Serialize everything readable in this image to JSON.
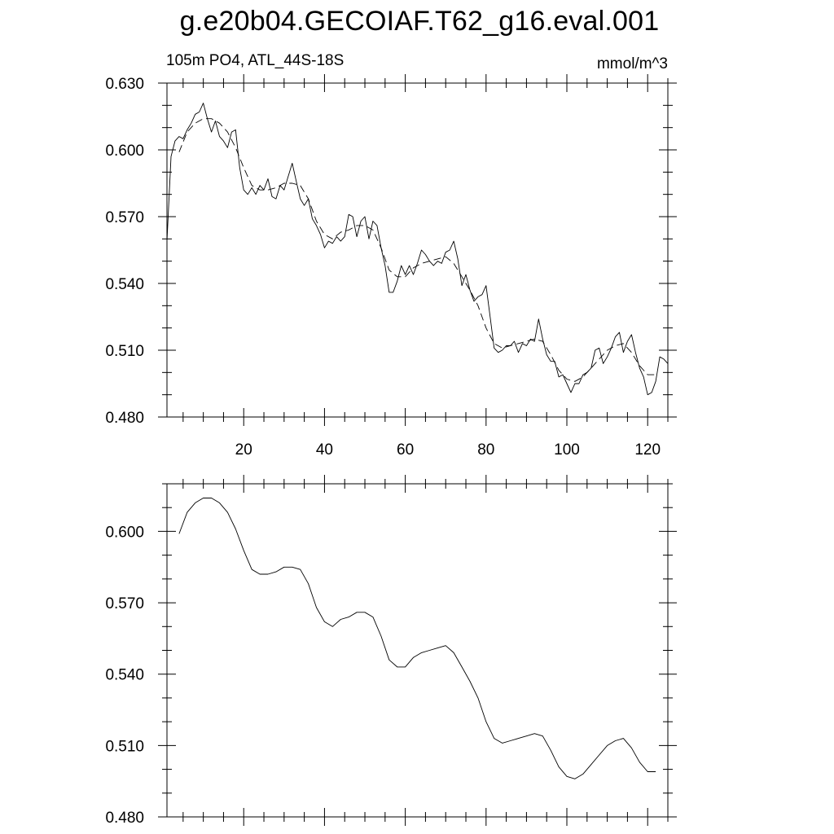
{
  "chart_data": [
    {
      "type": "line",
      "title": "g.e20b04.GECOIAF.T62_g16.eval.001",
      "subtitle_left": "105m PO4, ATL_44S-18S",
      "subtitle_right": "mmol/m^3",
      "xlim": [
        1,
        125
      ],
      "ylim": [
        0.48,
        0.63
      ],
      "xticks": [
        "20",
        "40",
        "60",
        "80",
        "100",
        "120"
      ],
      "yticks": [
        "0.480",
        "0.510",
        "0.540",
        "0.570",
        "0.600",
        "0.630"
      ],
      "series": [
        {
          "style": "solid",
          "x": [
            1,
            2,
            3,
            4,
            5,
            6,
            7,
            8,
            9,
            10,
            11,
            12,
            13,
            14,
            15,
            16,
            17,
            18,
            19,
            20,
            21,
            22,
            23,
            24,
            25,
            26,
            27,
            28,
            29,
            30,
            31,
            32,
            33,
            34,
            35,
            36,
            37,
            38,
            39,
            40,
            41,
            42,
            43,
            44,
            45,
            46,
            47,
            48,
            49,
            50,
            51,
            52,
            53,
            54,
            55,
            56,
            57,
            58,
            59,
            60,
            61,
            62,
            63,
            64,
            65,
            66,
            67,
            68,
            69,
            70,
            71,
            72,
            73,
            74,
            75,
            76,
            77,
            78,
            79,
            80,
            81,
            82,
            83,
            84,
            85,
            86,
            87,
            88,
            89,
            90,
            91,
            92,
            93,
            94,
            95,
            96,
            97,
            98,
            99,
            100,
            101,
            102,
            103,
            104,
            105,
            106,
            107,
            108,
            109,
            110,
            111,
            112,
            113,
            114,
            115,
            116,
            117,
            118,
            119,
            120,
            121,
            122,
            123,
            124,
            125
          ],
          "values": [
            0.559,
            0.597,
            0.604,
            0.606,
            0.605,
            0.609,
            0.612,
            0.616,
            0.617,
            0.621,
            0.614,
            0.608,
            0.613,
            0.606,
            0.604,
            0.601,
            0.608,
            0.609,
            0.592,
            0.582,
            0.58,
            0.583,
            0.58,
            0.584,
            0.582,
            0.587,
            0.579,
            0.578,
            0.584,
            0.582,
            0.588,
            0.594,
            0.586,
            0.578,
            0.575,
            0.578,
            0.569,
            0.566,
            0.562,
            0.556,
            0.559,
            0.558,
            0.561,
            0.559,
            0.561,
            0.571,
            0.57,
            0.561,
            0.568,
            0.57,
            0.56,
            0.568,
            0.566,
            0.556,
            0.548,
            0.536,
            0.536,
            0.541,
            0.548,
            0.544,
            0.548,
            0.544,
            0.549,
            0.555,
            0.553,
            0.55,
            0.548,
            0.55,
            0.549,
            0.554,
            0.555,
            0.559,
            0.551,
            0.539,
            0.544,
            0.537,
            0.532,
            0.534,
            0.535,
            0.539,
            0.525,
            0.511,
            0.509,
            0.51,
            0.512,
            0.512,
            0.514,
            0.509,
            0.513,
            0.512,
            0.515,
            0.514,
            0.524,
            0.515,
            0.508,
            0.505,
            0.505,
            0.498,
            0.499,
            0.495,
            0.491,
            0.495,
            0.495,
            0.499,
            0.5,
            0.502,
            0.51,
            0.511,
            0.504,
            0.507,
            0.511,
            0.516,
            0.518,
            0.509,
            0.514,
            0.517,
            0.509,
            0.502,
            0.498,
            0.49,
            0.491,
            0.496,
            0.507,
            0.506,
            0.504
          ]
        },
        {
          "style": "dashed",
          "x": [
            4,
            6,
            8,
            10,
            12,
            14,
            16,
            18,
            20,
            22,
            24,
            26,
            28,
            30,
            32,
            34,
            36,
            38,
            40,
            42,
            44,
            46,
            48,
            50,
            52,
            54,
            56,
            58,
            60,
            62,
            64,
            66,
            68,
            70,
            72,
            74,
            76,
            78,
            80,
            82,
            84,
            86,
            88,
            90,
            92,
            94,
            96,
            98,
            100,
            102,
            104,
            106,
            108,
            110,
            112,
            114,
            116,
            118,
            120,
            122
          ],
          "values": [
            0.599,
            0.608,
            0.612,
            0.614,
            0.614,
            0.612,
            0.608,
            0.601,
            0.592,
            0.584,
            0.582,
            0.582,
            0.583,
            0.585,
            0.585,
            0.584,
            0.578,
            0.568,
            0.562,
            0.56,
            0.563,
            0.564,
            0.566,
            0.566,
            0.564,
            0.556,
            0.546,
            0.543,
            0.543,
            0.547,
            0.549,
            0.55,
            0.551,
            0.552,
            0.549,
            0.543,
            0.537,
            0.53,
            0.52,
            0.513,
            0.511,
            0.512,
            0.513,
            0.514,
            0.515,
            0.514,
            0.508,
            0.501,
            0.497,
            0.496,
            0.498,
            0.502,
            0.506,
            0.51,
            0.512,
            0.513,
            0.509,
            0.503,
            0.499,
            0.499
          ]
        }
      ]
    },
    {
      "type": "line",
      "xlim": [
        1,
        125
      ],
      "ylim": [
        0.48,
        0.62
      ],
      "xticks": [],
      "yticks": [
        "0.480",
        "0.510",
        "0.540",
        "0.570",
        "0.600"
      ],
      "series": [
        {
          "style": "solid",
          "x": [
            4,
            6,
            8,
            10,
            12,
            14,
            16,
            18,
            20,
            22,
            24,
            26,
            28,
            30,
            32,
            34,
            36,
            38,
            40,
            42,
            44,
            46,
            48,
            50,
            52,
            54,
            56,
            58,
            60,
            62,
            64,
            66,
            68,
            70,
            72,
            74,
            76,
            78,
            80,
            82,
            84,
            86,
            88,
            90,
            92,
            94,
            96,
            98,
            100,
            102,
            104,
            106,
            108,
            110,
            112,
            114,
            116,
            118,
            120,
            122
          ],
          "values": [
            0.599,
            0.608,
            0.612,
            0.614,
            0.614,
            0.612,
            0.608,
            0.601,
            0.592,
            0.584,
            0.582,
            0.582,
            0.583,
            0.585,
            0.585,
            0.584,
            0.578,
            0.568,
            0.562,
            0.56,
            0.563,
            0.564,
            0.566,
            0.566,
            0.564,
            0.556,
            0.546,
            0.543,
            0.543,
            0.547,
            0.549,
            0.55,
            0.551,
            0.552,
            0.549,
            0.543,
            0.537,
            0.53,
            0.52,
            0.513,
            0.511,
            0.512,
            0.513,
            0.514,
            0.515,
            0.514,
            0.508,
            0.501,
            0.497,
            0.496,
            0.498,
            0.502,
            0.506,
            0.51,
            0.512,
            0.513,
            0.509,
            0.503,
            0.499,
            0.499
          ]
        }
      ]
    }
  ]
}
